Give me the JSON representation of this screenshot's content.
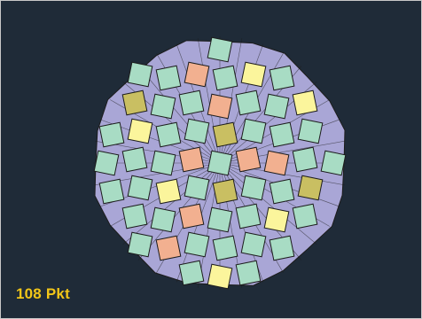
{
  "score": {
    "text": "108 Pkt"
  },
  "palette": {
    "background": "#1f2b38",
    "mint": "#a8dcc4",
    "yellow": "#fbf59c",
    "lavender": "#a9a6d6",
    "salmon": "#f2b090",
    "olive": "#c9bf62",
    "edge": "#1c1c1c"
  }
}
